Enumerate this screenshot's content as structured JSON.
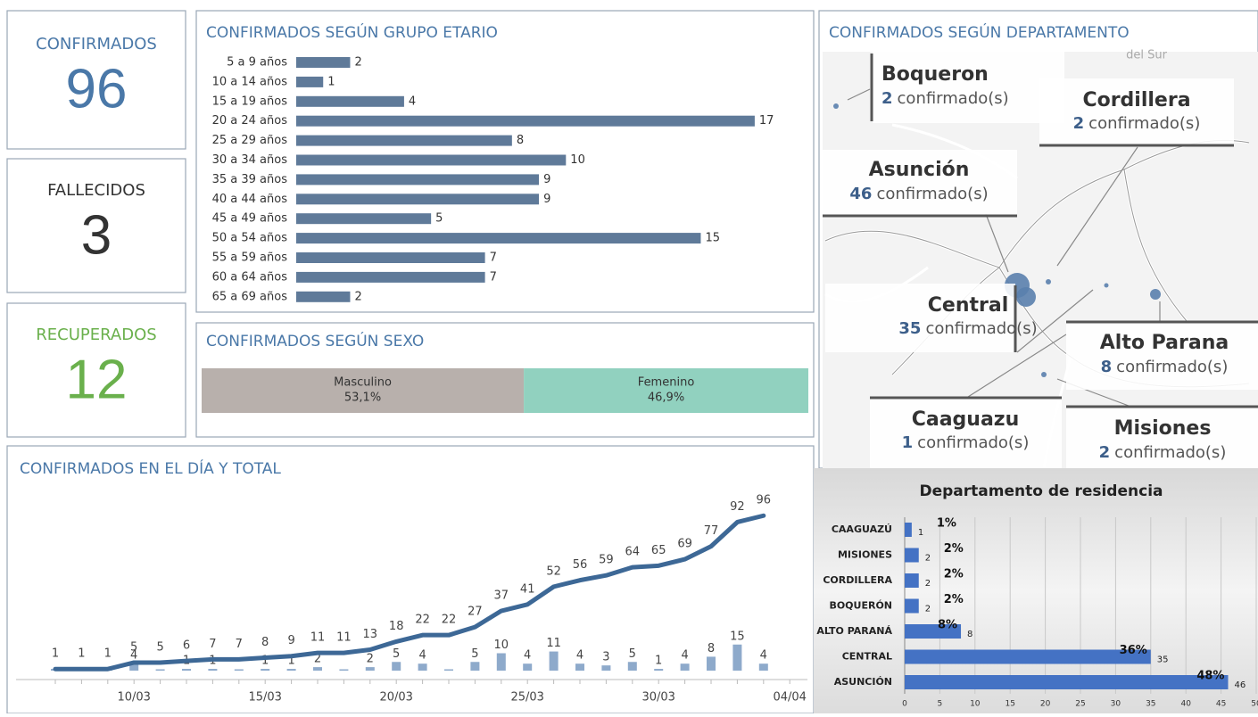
{
  "kpis": [
    {
      "label": "CONFIRMADOS",
      "value": 96,
      "color": "#4a78a8"
    },
    {
      "label": "FALLECIDOS",
      "value": 3,
      "color": "#333333"
    },
    {
      "label": "RECUPERADOS",
      "value": 12,
      "color": "#6ab04c"
    }
  ],
  "chart_data": [
    {
      "type": "hbar",
      "title": "CONFIRMADOS SEGÚN GRUPO ETARIO",
      "color": "#5f7a99",
      "categories": [
        "5 a 9 años",
        "10 a 14 años",
        "15 a 19 años",
        "20 a 24 años",
        "25 a 29 años",
        "30 a 34 años",
        "35 a 39 años",
        "40 a 44 años",
        "45 a 49 años",
        "50 a 54 años",
        "55 a 59 años",
        "60 a 64 años",
        "65 a 69 años"
      ],
      "values": [
        2,
        1,
        4,
        17,
        8,
        10,
        9,
        9,
        5,
        15,
        7,
        7,
        2
      ]
    },
    {
      "type": "stacked_hbar",
      "title": "CONFIRMADOS SEGÚN SEXO",
      "series": [
        {
          "name": "Masculino",
          "color": "#b8b0ac",
          "values": [
            53.1
          ],
          "value_labels": [
            "53,1%"
          ]
        },
        {
          "name": "Femenino",
          "color": "#91d1bf",
          "values": [
            46.9
          ],
          "value_labels": [
            "46,9%"
          ]
        }
      ]
    },
    {
      "type": "combo",
      "title": "CONFIRMADOS EN EL DÍA Y TOTAL",
      "categories": [
        null,
        null,
        null,
        "10/03",
        null,
        null,
        null,
        null,
        "15/03",
        null,
        null,
        null,
        null,
        "20/03",
        null,
        null,
        null,
        null,
        "25/03",
        null,
        null,
        null,
        null,
        "30/03",
        null,
        null,
        null,
        null,
        "04/04"
      ],
      "series": [
        {
          "type": "bar",
          "color": "#8eaacb",
          "values": [
            1,
            0,
            0,
            4,
            0,
            1,
            1,
            0,
            1,
            1,
            2,
            0,
            2,
            5,
            4,
            0,
            5,
            10,
            4,
            11,
            4,
            3,
            5,
            1,
            4,
            8,
            15,
            4,
            null
          ],
          "value_labels": [
            null,
            null,
            null,
            "4",
            null,
            "1",
            "1",
            null,
            "1",
            "1",
            "2",
            null,
            "2",
            "5",
            "4",
            null,
            "5",
            "10",
            "4",
            "11",
            "4",
            "3",
            "5",
            "1",
            "4",
            "8",
            "15",
            "4",
            null
          ]
        },
        {
          "type": "line",
          "color": "#3d6896",
          "values": [
            1,
            1,
            1,
            5,
            5,
            6,
            7,
            7,
            8,
            9,
            11,
            11,
            13,
            18,
            22,
            22,
            27,
            37,
            41,
            52,
            56,
            59,
            64,
            65,
            69,
            77,
            92,
            96,
            null
          ]
        }
      ]
    },
    {
      "type": "hbar_axis",
      "title": "Departamento de residencia",
      "color": "#4472c4",
      "categories": [
        "CAAGUAZÚ",
        "MISIONES",
        "CORDILLERA",
        "BOQUERÓN",
        "ALTO PARANÁ",
        "CENTRAL",
        "ASUNCIÓN"
      ],
      "values": [
        1,
        2,
        2,
        2,
        8,
        35,
        46
      ],
      "percent": [
        1,
        2,
        2,
        2,
        8,
        36,
        48
      ],
      "percent_labels": [
        "1%",
        "2%",
        "2%",
        "2%",
        "8%",
        "36%",
        "48%"
      ],
      "xlim": [
        0,
        50
      ],
      "xticks": [
        0,
        5,
        10,
        15,
        20,
        25,
        30,
        35,
        40,
        45,
        50
      ],
      "grid": true
    }
  ],
  "map": {
    "title": "CONFIRMADOS SEGÚN DEPARTAMENTO",
    "unit": "confirmado(s)",
    "labels": [
      "del Sur"
    ],
    "callouts": [
      {
        "name": "Boqueron",
        "value": 2
      },
      {
        "name": "Cordillera",
        "value": 2
      },
      {
        "name": "Asunción",
        "value": 46
      },
      {
        "name": "Central",
        "value": 35
      },
      {
        "name": "Alto Parana",
        "value": 8
      },
      {
        "name": "Caaguazu",
        "value": 1
      },
      {
        "name": "Misiones",
        "value": 2
      }
    ]
  }
}
